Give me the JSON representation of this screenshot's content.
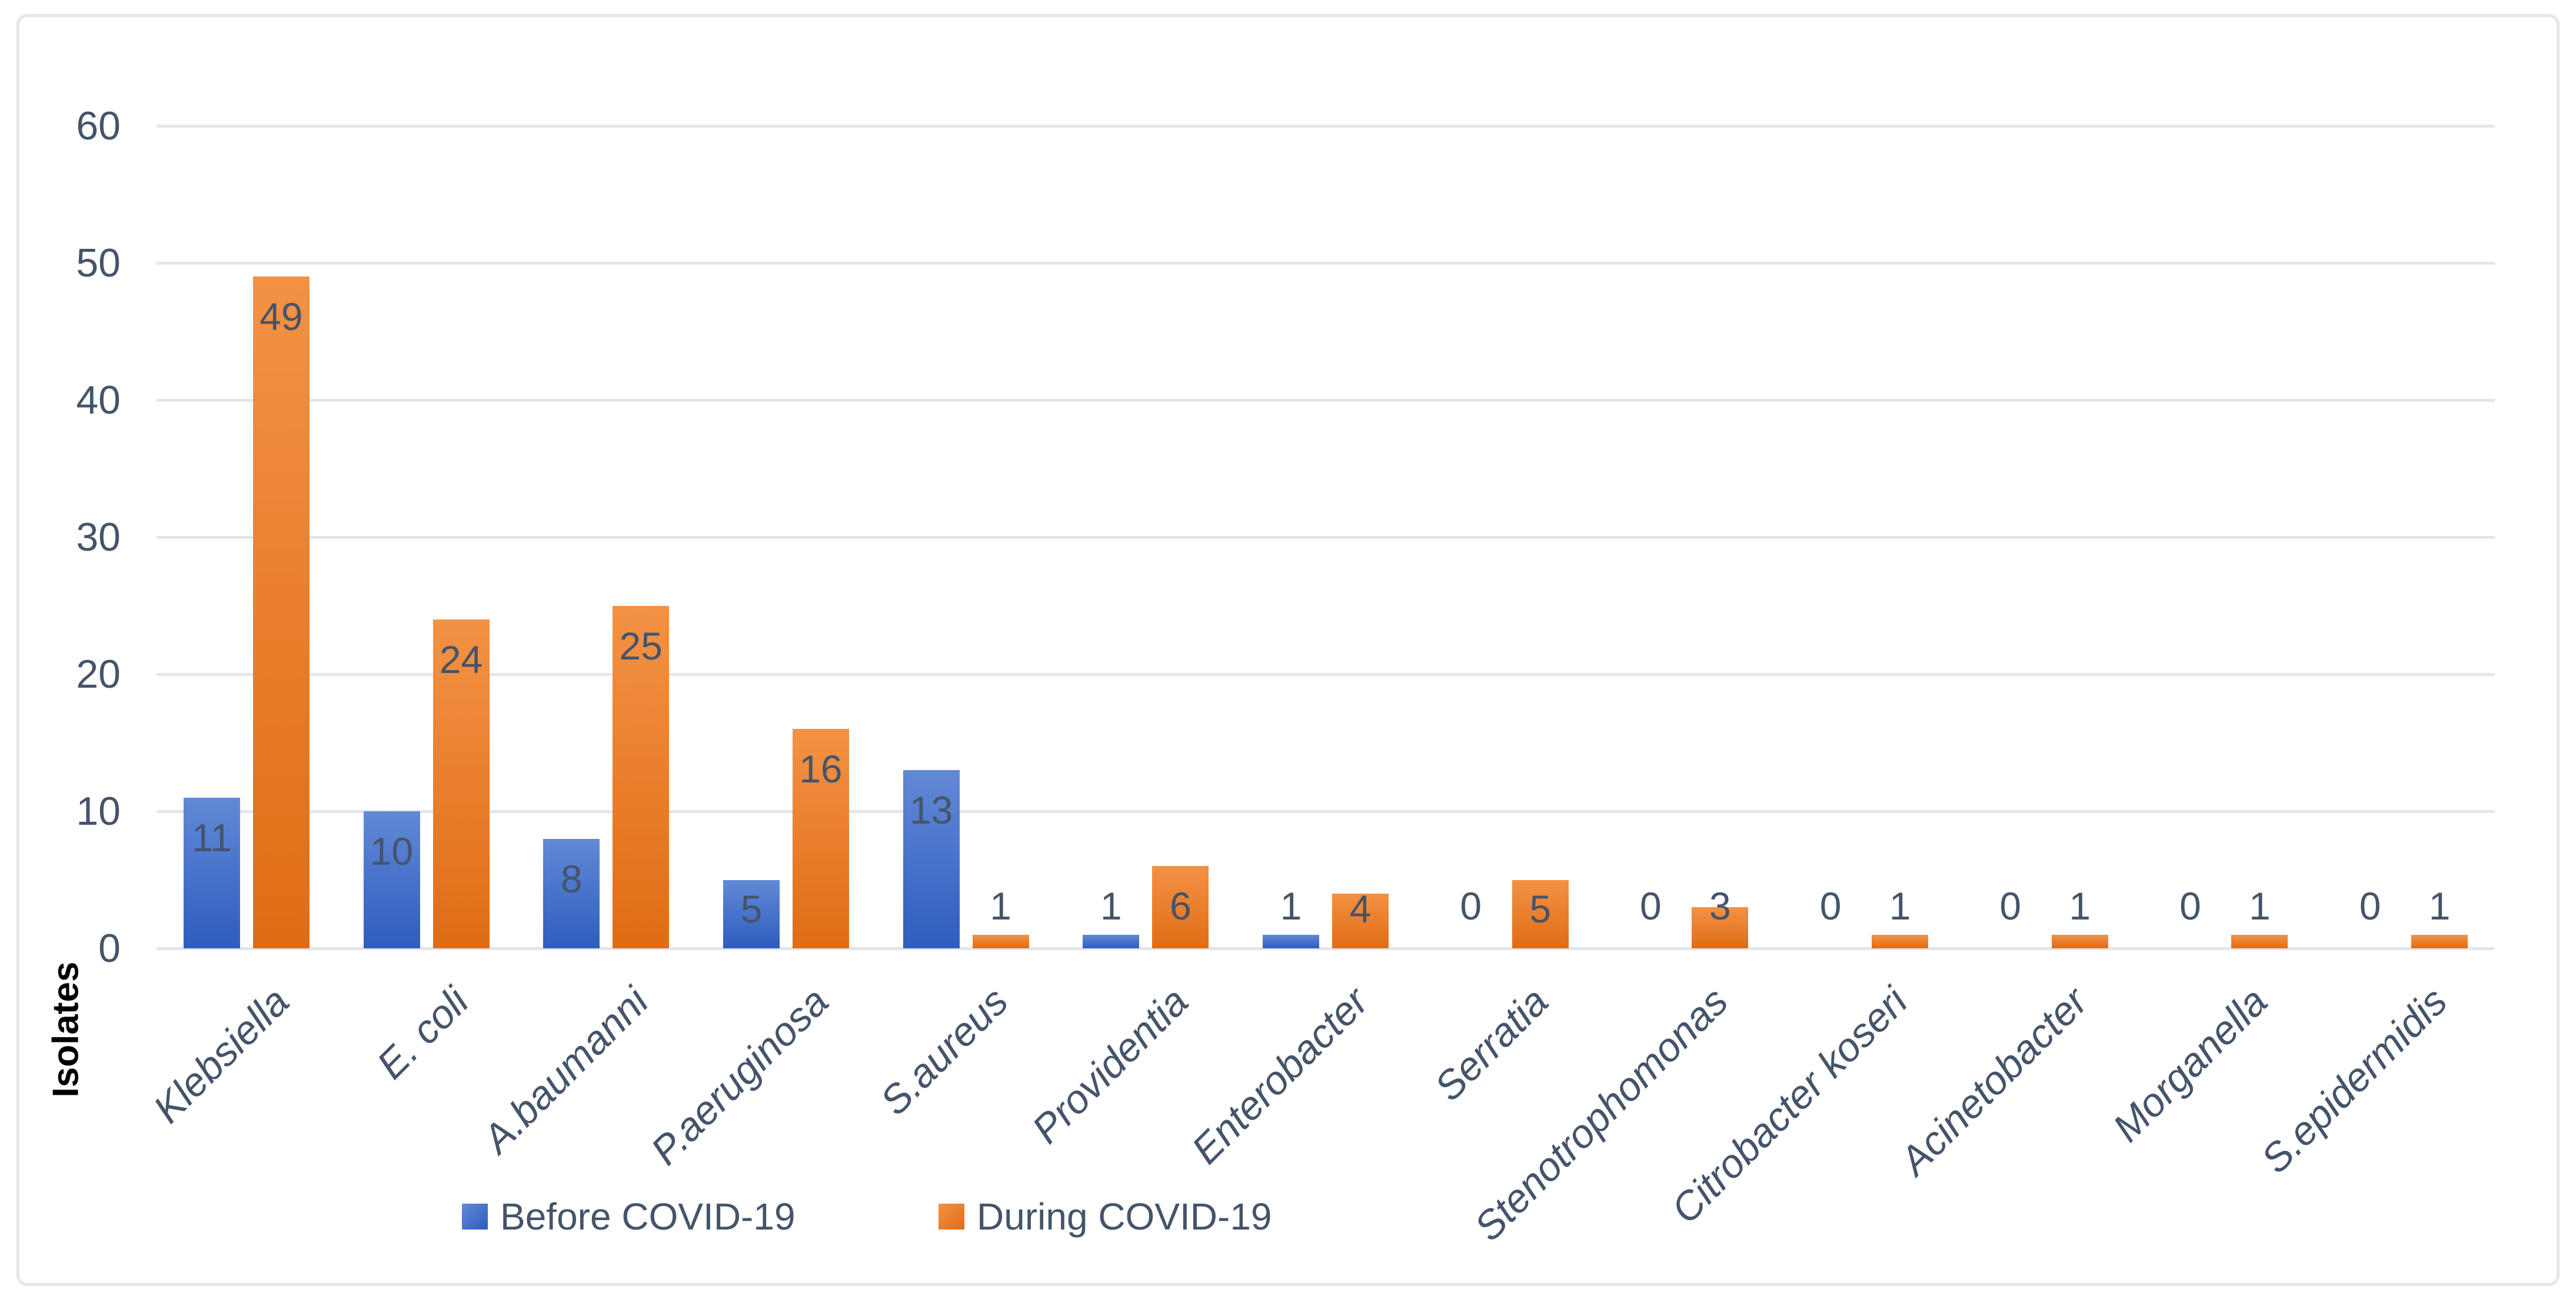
{
  "chart_data": {
    "type": "bar",
    "title": "",
    "xlabel": "",
    "ylabel": "Isolates",
    "categories": [
      "Klebsiella",
      "E. coli",
      "A.baumanni",
      "P.aeruginosa",
      "S.aureus",
      "Providentia",
      "Enterobacter",
      "Serratia",
      "Stenotrophomonas",
      "Citrobacter koseri",
      "Acinetobacter",
      "Morganella",
      "S.epidermidis"
    ],
    "series": [
      {
        "name": "Before COVID-19",
        "color": "#4472C4",
        "gradient_top": "#6289d6",
        "gradient_bottom": "#2e5dbf",
        "values": [
          11,
          10,
          8,
          5,
          13,
          1,
          1,
          0,
          0,
          0,
          0,
          0,
          0
        ]
      },
      {
        "name": "During COVID-19",
        "color": "#ED7D31",
        "gradient_top": "#f39245",
        "gradient_bottom": "#e06c15",
        "values": [
          49,
          24,
          25,
          16,
          1,
          6,
          4,
          5,
          3,
          1,
          1,
          1,
          1
        ]
      }
    ],
    "yticks": [
      0,
      10,
      20,
      30,
      40,
      50,
      60
    ],
    "ylim": [
      0,
      60
    ],
    "grid": true,
    "bar_value_labels": true,
    "legend_position": "bottom"
  },
  "colors": {
    "axis_text": "#44546A",
    "data_label": "#44546A",
    "gridline": "#E2E6EC",
    "frame_border": "#E3E7ED",
    "background": "#FFFFFF",
    "axis_title": "#000000"
  }
}
